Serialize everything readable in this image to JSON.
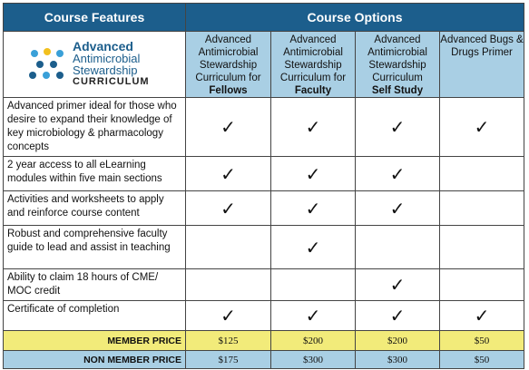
{
  "header": {
    "features": "Course Features",
    "options": "Course Options"
  },
  "logo": {
    "line1": "Advanced",
    "line2": "Antimicrobial",
    "line3": "Stewardship",
    "line4": "CURRICULUM"
  },
  "options": [
    {
      "text": "Advanced Antimicrobial Stewardship Curriculum for",
      "emphasis": "Fellows"
    },
    {
      "text": "Advanced Antimicrobial Stewardship Curriculum for",
      "emphasis": "Faculty"
    },
    {
      "text": "Advanced Antimicrobial Stewardship Curriculum",
      "emphasis": "Self Study"
    },
    {
      "text": "Advanced Bugs & Drugs Primer"
    }
  ],
  "rows": [
    {
      "feature": "Advanced primer ideal for those who desire to expand their knowledge of key microbiology & pharmacology concepts",
      "cells": [
        "✓",
        "✓",
        "✓",
        "✓"
      ]
    },
    {
      "feature": "2 year access to all eLearning modules within five main sections",
      "cells": [
        "✓",
        "✓",
        "✓",
        null
      ]
    },
    {
      "feature": "Activities and worksheets to apply and reinforce course content",
      "cells": [
        "✓",
        "✓",
        "✓",
        null
      ]
    },
    {
      "feature": "Robust and comprehensive faculty guide to lead and assist in teaching",
      "cells": [
        null,
        "✓",
        null,
        null
      ]
    },
    {
      "feature": "Ability to claim 18 hours of CME/ MOC credit",
      "cells": [
        null,
        null,
        "✓",
        null
      ]
    },
    {
      "feature": "Certificate of completion",
      "cells": [
        "✓",
        "✓",
        "✓",
        "✓"
      ]
    }
  ],
  "prices": [
    {
      "label": "MEMBER PRICE",
      "cells": [
        "$125",
        "$200",
        "$200",
        "$50"
      ]
    },
    {
      "label": "NON MEMBER PRICE",
      "cells": [
        "$175",
        "$300",
        "$300",
        "$50"
      ]
    }
  ]
}
